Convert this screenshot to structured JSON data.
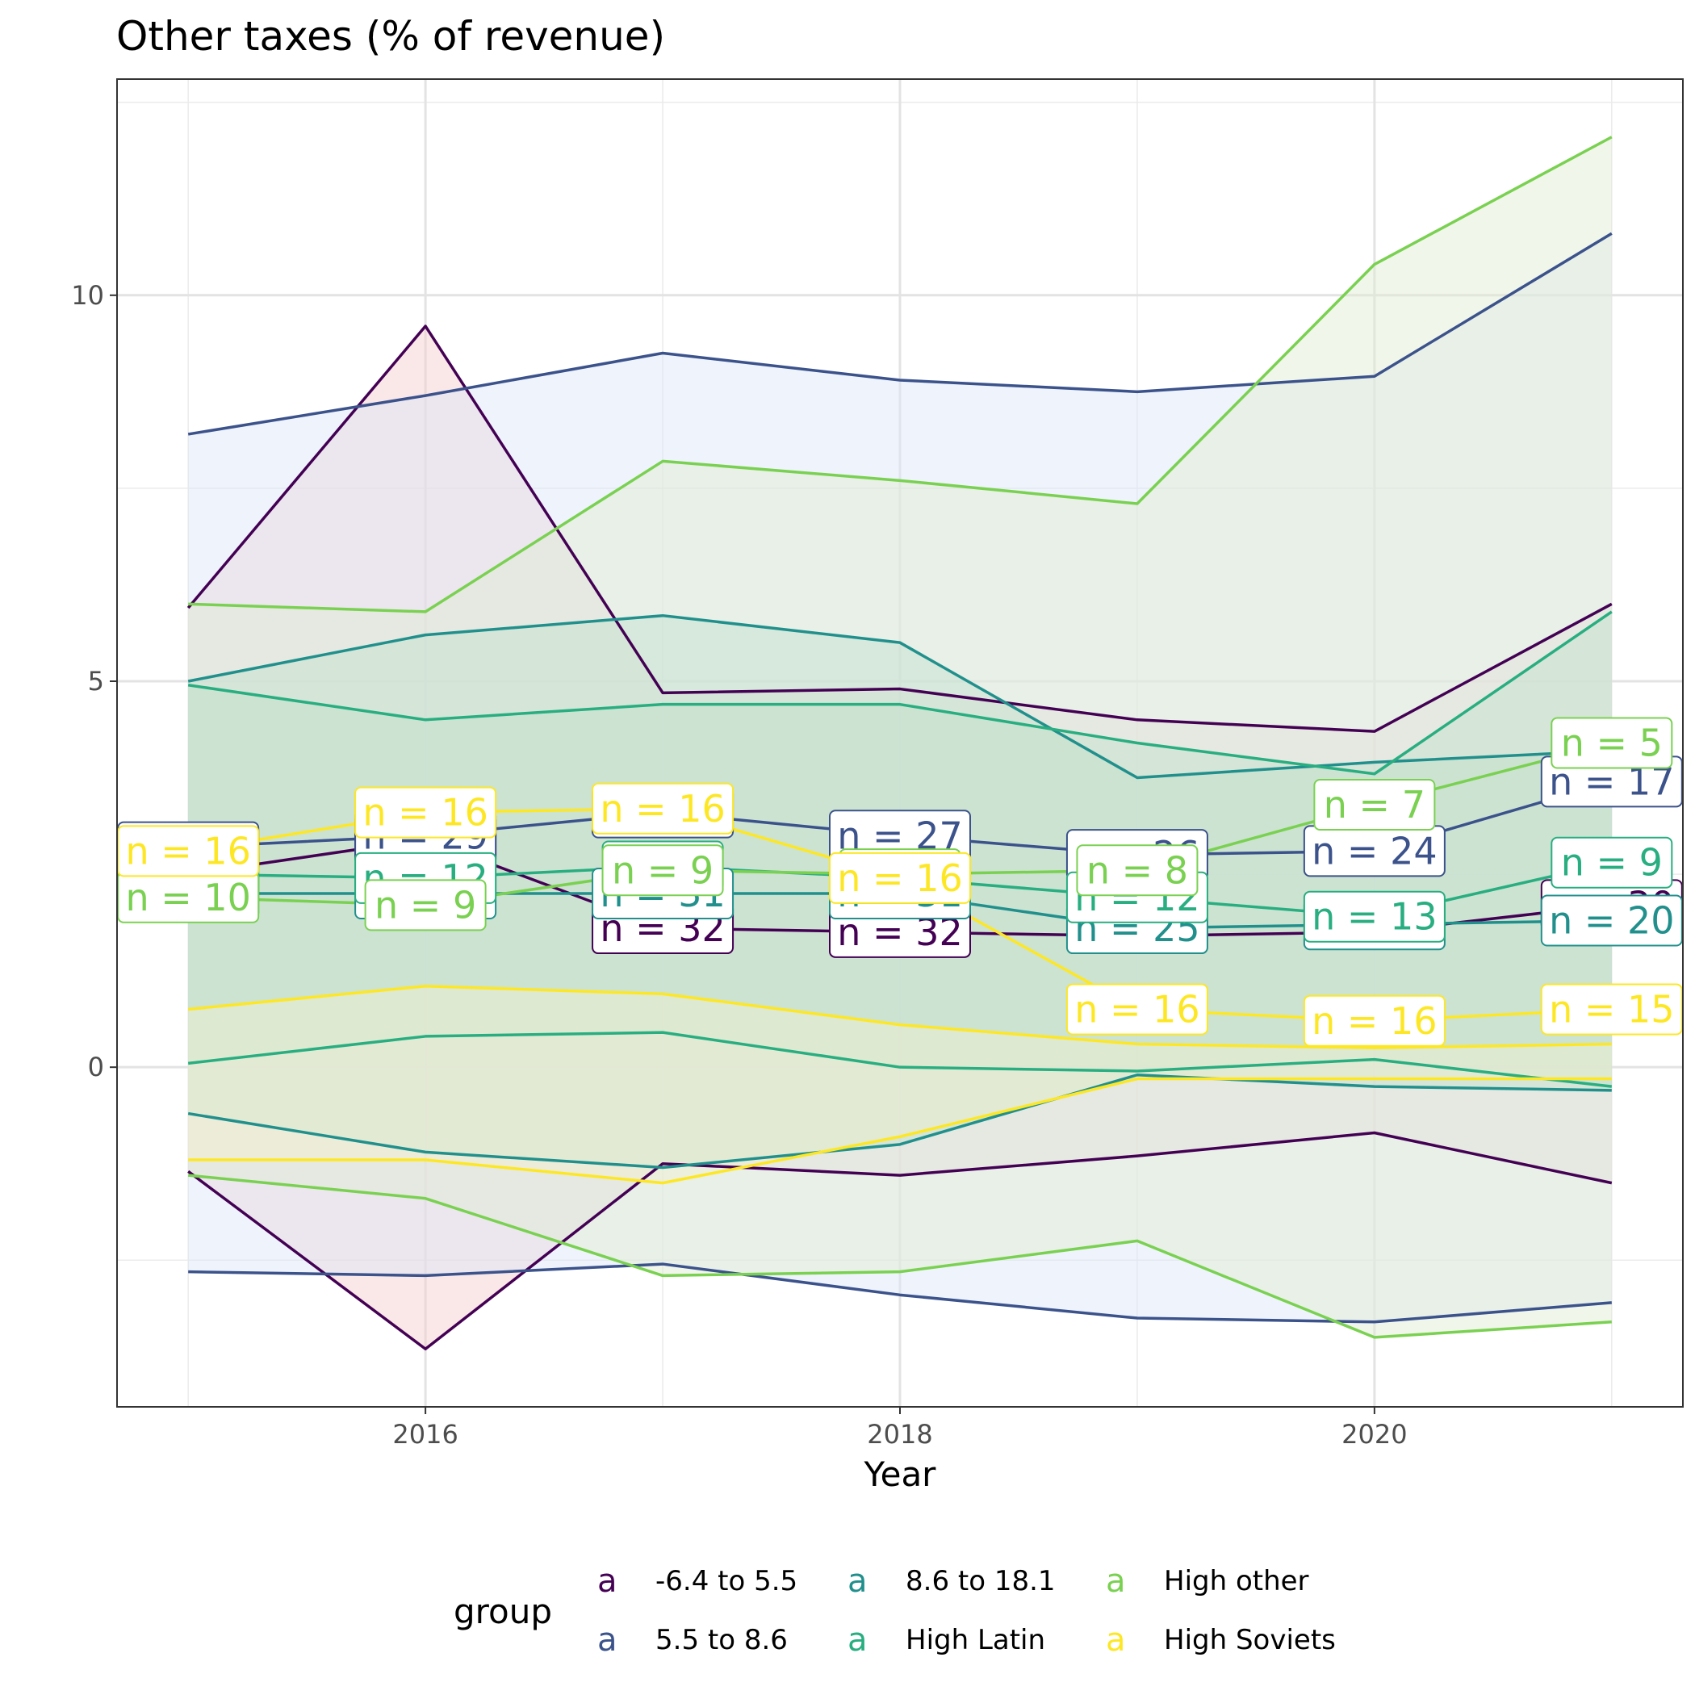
{
  "chart_data": {
    "type": "line",
    "title": "Other taxes (% of revenue)",
    "xlabel": "Year",
    "ylabel": "",
    "xlim": [
      2014.7,
      2021.3
    ],
    "ylim": [
      -4.4,
      12.8
    ],
    "x_ticks": [
      2016,
      2018,
      2020
    ],
    "y_ticks": [
      0,
      5,
      10
    ],
    "x_minor_gridlines": [
      2015,
      2017,
      2019,
      2021
    ],
    "y_minor_gridlines": [
      -2.5,
      2.5,
      7.5,
      12.5
    ],
    "grid": true,
    "legend": {
      "title": "group",
      "position": "bottom",
      "key_glyph": "a"
    },
    "x": [
      2015,
      2016,
      2017,
      2018,
      2019,
      2020,
      2021
    ],
    "series": [
      {
        "name": "-6.4 to 5.5",
        "color": "#440154",
        "mean": [
          2.5,
          2.95,
          1.8,
          1.75,
          1.7,
          1.75,
          2.1
        ],
        "upper": [
          5.95,
          9.6,
          4.85,
          4.9,
          4.5,
          4.35,
          6.0
        ],
        "lower": [
          -1.35,
          -3.65,
          -1.25,
          -1.4,
          -1.15,
          -0.85,
          -1.5
        ],
        "n": [
          null,
          30,
          32,
          32,
          null,
          null,
          30
        ],
        "n_text": [
          "",
          "n = 30",
          "n = 32",
          "n = 32",
          "",
          "",
          "n = 30"
        ],
        "fill": "#f4cccc"
      },
      {
        "name": "5.5 to 8.6",
        "color": "#3b528b",
        "mean": [
          2.85,
          3.0,
          3.3,
          3.0,
          2.75,
          2.8,
          3.7
        ],
        "upper": [
          8.2,
          8.7,
          9.25,
          8.9,
          8.75,
          8.95,
          10.8
        ],
        "lower": [
          -2.65,
          -2.7,
          -2.55,
          -2.95,
          -3.25,
          -3.3,
          -3.05
        ],
        "n": [
          29,
          29,
          27,
          27,
          26,
          24,
          17
        ],
        "n_text": [
          "n = 29",
          "n = 29",
          "n = 27",
          "n = 27",
          "n = 26",
          "n = 24",
          "n = 17"
        ],
        "fill": "#dbe6f8"
      },
      {
        "name": "8.6 to 18.1",
        "color": "#21908c",
        "mean": [
          2.25,
          2.25,
          2.25,
          2.25,
          1.8,
          1.85,
          1.9
        ],
        "upper": [
          5.0,
          5.6,
          5.85,
          5.5,
          3.75,
          3.95,
          4.1
        ],
        "lower": [
          -0.6,
          -1.1,
          -1.3,
          -1.0,
          -0.1,
          -0.25,
          -0.3
        ],
        "n": [
          12,
          12,
          31,
          31,
          25,
          25,
          20
        ],
        "n_text": [
          "n = 12",
          "n = 12",
          "n = 31",
          "n = 31",
          "n = 25",
          "n = 25",
          "n = 20"
        ],
        "fill": "#a9d8cc"
      },
      {
        "name": "High Latin",
        "color": "#28ae80",
        "mean": [
          2.5,
          2.45,
          2.6,
          2.45,
          2.2,
          1.95,
          2.65
        ],
        "upper": [
          4.95,
          4.5,
          4.7,
          4.7,
          4.2,
          3.8,
          5.9
        ],
        "lower": [
          0.05,
          0.4,
          0.45,
          0.0,
          -0.05,
          0.1,
          -0.25
        ],
        "n": [
          12,
          12,
          9,
          9,
          12,
          13,
          9
        ],
        "n_text": [
          "n = 12",
          "n = 12",
          "n = 9",
          "n = 9",
          "n = 12",
          "n = 13",
          "n = 9"
        ],
        "fill": "#a8d8c8"
      },
      {
        "name": "High other",
        "color": "#7ad151",
        "mean": [
          2.2,
          2.1,
          2.55,
          2.5,
          2.55,
          3.4,
          4.2
        ],
        "upper": [
          6.0,
          5.9,
          7.85,
          7.6,
          7.3,
          10.4,
          12.05
        ],
        "lower": [
          -1.4,
          -1.7,
          -2.7,
          -2.65,
          -2.25,
          -3.5,
          -3.3
        ],
        "n": [
          10,
          9,
          9,
          9,
          8,
          7,
          5
        ],
        "n_text": [
          "n = 10",
          "n = 9",
          "n = 9",
          "n = 9",
          "n = 8",
          "n = 7",
          "n = 5"
        ],
        "fill": "#e0ecd0"
      },
      {
        "name": "High Soviets",
        "color": "#fde725",
        "mean": [
          2.8,
          3.3,
          3.35,
          2.45,
          0.75,
          0.6,
          0.75
        ],
        "upper": [
          0.75,
          1.05,
          0.95,
          0.55,
          0.3,
          0.25,
          0.3
        ],
        "lower": [
          -1.2,
          -1.2,
          -1.5,
          -0.9,
          -0.15,
          -0.15,
          -0.15
        ],
        "n": [
          16,
          16,
          16,
          16,
          16,
          16,
          15
        ],
        "n_text": [
          "n = 16",
          "n = 16",
          "n = 16",
          "n = 16",
          "n = 16",
          "n = 16",
          "n = 15"
        ],
        "fill": "#f4efd0"
      }
    ]
  }
}
